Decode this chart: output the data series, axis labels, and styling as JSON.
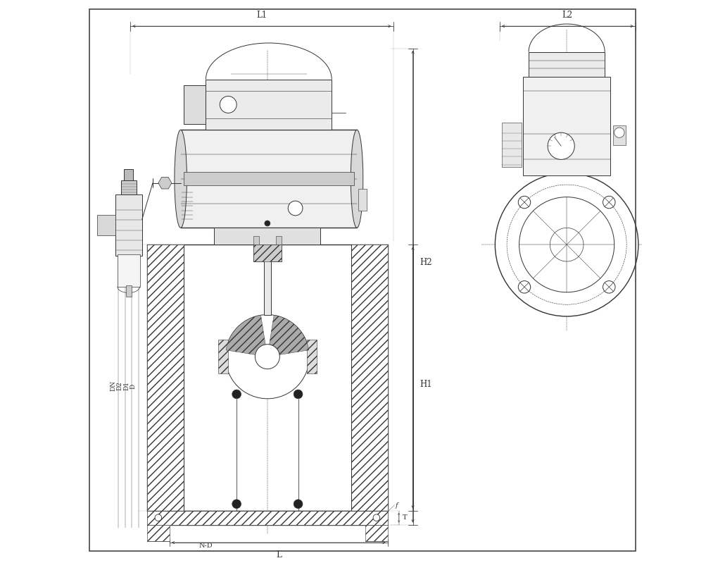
{
  "bg_color": "#ffffff",
  "line_color": "#333333",
  "fig_width": 10.3,
  "fig_height": 7.99,
  "dpi": 100,
  "labels": {
    "L1": "L1",
    "L2": "L2",
    "H1": "H1",
    "H2": "H2",
    "L": "L",
    "T": "T",
    "f": "f",
    "D": "D",
    "D1": "D1",
    "D2": "D2",
    "DN": "DN",
    "ND": "N-D"
  }
}
